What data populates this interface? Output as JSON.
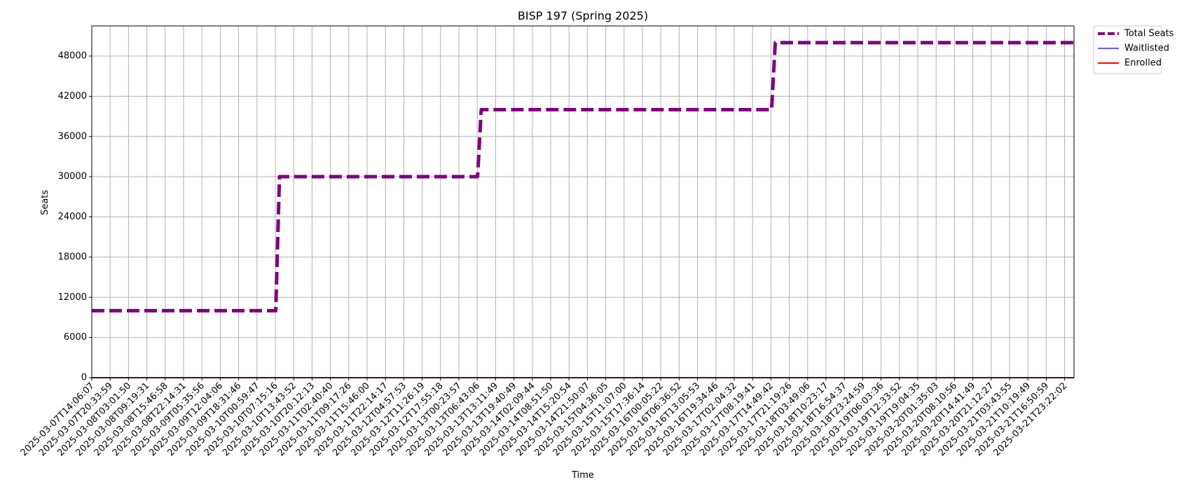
{
  "chart_data": {
    "type": "line",
    "title": "BISP 197 (Spring 2025)",
    "xlabel": "Time",
    "ylabel": "Seats",
    "ylim": [
      0,
      52500
    ],
    "y_ticks": [
      0,
      6000,
      12000,
      18000,
      24000,
      30000,
      36000,
      42000,
      48000
    ],
    "grid": true,
    "legend_position": "outside-top-right",
    "x_tick_labels": [
      "2025-03-07T14:06:07",
      "2025-03-07T20:33:59",
      "2025-03-08T03:01:50",
      "2025-03-08T09:19:31",
      "2025-03-08T15:46:58",
      "2025-03-08T22:14:31",
      "2025-03-09T05:35:56",
      "2025-03-09T12:04:06",
      "2025-03-09T18:31:46",
      "2025-03-10T00:59:47",
      "2025-03-10T07:15:16",
      "2025-03-10T13:43:52",
      "2025-03-10T20:12:13",
      "2025-03-11T02:40:40",
      "2025-03-11T09:17:26",
      "2025-03-11T15:46:00",
      "2025-03-11T22:14:17",
      "2025-03-12T04:57:53",
      "2025-03-12T11:26:19",
      "2025-03-12T17:55:18",
      "2025-03-13T00:23:57",
      "2025-03-13T06:43:06",
      "2025-03-13T13:11:49",
      "2025-03-13T19:40:49",
      "2025-03-14T02:09:44",
      "2025-03-14T08:51:50",
      "2025-03-14T15:20:54",
      "2025-03-14T21:50:07",
      "2025-03-15T04:36:05",
      "2025-03-15T11:07:00",
      "2025-03-15T17:36:14",
      "2025-03-16T00:05:22",
      "2025-03-16T06:36:52",
      "2025-03-16T13:05:53",
      "2025-03-16T19:34:46",
      "2025-03-17T02:04:32",
      "2025-03-17T08:19:41",
      "2025-03-17T14:49:42",
      "2025-03-17T21:19:26",
      "2025-03-18T03:49:06",
      "2025-03-18T10:23:17",
      "2025-03-18T16:54:37",
      "2025-03-18T23:24:59",
      "2025-03-19T06:03:36",
      "2025-03-19T12:33:52",
      "2025-03-19T19:04:35",
      "2025-03-20T01:35:03",
      "2025-03-20T08:10:56",
      "2025-03-20T14:41:49",
      "2025-03-20T21:12:27",
      "2025-03-21T03:43:55",
      "2025-03-21T10:19:49",
      "2025-03-21T16:50:59",
      "2025-03-21T23:22:02"
    ],
    "series": [
      {
        "name": "Total Seats",
        "color": "#800080",
        "style": "dashed",
        "steps": [
          {
            "from": "2025-03-07T14:06:07",
            "value": 10000
          },
          {
            "from": "2025-03-10T07:15:16",
            "value": 30000
          },
          {
            "from": "2025-03-13T06:43:06",
            "value": 40000
          },
          {
            "from": "2025-03-17T14:49:42",
            "value": 50000
          }
        ],
        "end": "2025-03-22T02:00:00"
      },
      {
        "name": "Waitlisted",
        "color": "#0000ff",
        "style": "solid",
        "steps": [
          {
            "from": "2025-03-07T14:06:07",
            "value": 0
          }
        ],
        "end": "2025-03-22T02:00:00"
      },
      {
        "name": "Enrolled",
        "color": "#ff0000",
        "style": "solid",
        "steps": [
          {
            "from": "2025-03-07T14:06:07",
            "value": 0
          }
        ],
        "end": "2025-03-22T02:00:00"
      }
    ]
  }
}
